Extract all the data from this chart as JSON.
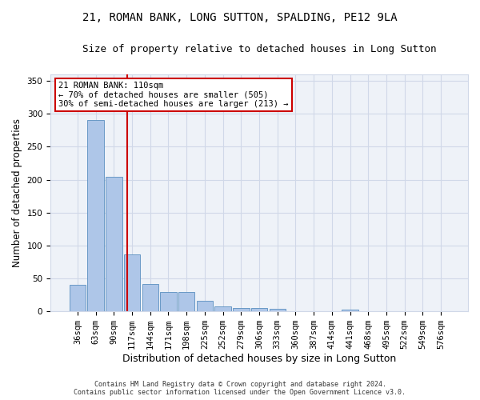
{
  "title_line1": "21, ROMAN BANK, LONG SUTTON, SPALDING, PE12 9LA",
  "title_line2": "Size of property relative to detached houses in Long Sutton",
  "xlabel": "Distribution of detached houses by size in Long Sutton",
  "ylabel": "Number of detached properties",
  "categories": [
    "36sqm",
    "63sqm",
    "90sqm",
    "117sqm",
    "144sqm",
    "171sqm",
    "198sqm",
    "225sqm",
    "252sqm",
    "279sqm",
    "306sqm",
    "333sqm",
    "360sqm",
    "387sqm",
    "414sqm",
    "441sqm",
    "468sqm",
    "495sqm",
    "522sqm",
    "549sqm",
    "576sqm"
  ],
  "values": [
    40,
    290,
    204,
    87,
    41,
    30,
    30,
    16,
    7,
    5,
    5,
    4,
    0,
    0,
    0,
    3,
    0,
    0,
    0,
    0,
    0
  ],
  "bar_color": "#aec6e8",
  "bar_edge_color": "#5a8fc0",
  "grid_color": "#d0d8e8",
  "background_color": "#eef2f8",
  "marker_color": "#cc0000",
  "annotation_text": "21 ROMAN BANK: 110sqm\n← 70% of detached houses are smaller (505)\n30% of semi-detached houses are larger (213) →",
  "annotation_box_color": "#ffffff",
  "annotation_border_color": "#cc0000",
  "ylim": [
    0,
    360
  ],
  "yticks": [
    0,
    50,
    100,
    150,
    200,
    250,
    300,
    350
  ],
  "footnote": "Contains HM Land Registry data © Crown copyright and database right 2024.\nContains public sector information licensed under the Open Government Licence v3.0.",
  "title_fontsize": 10,
  "subtitle_fontsize": 9,
  "tick_fontsize": 7.5,
  "xlabel_fontsize": 9,
  "ylabel_fontsize": 8.5,
  "footnote_fontsize": 6.0
}
